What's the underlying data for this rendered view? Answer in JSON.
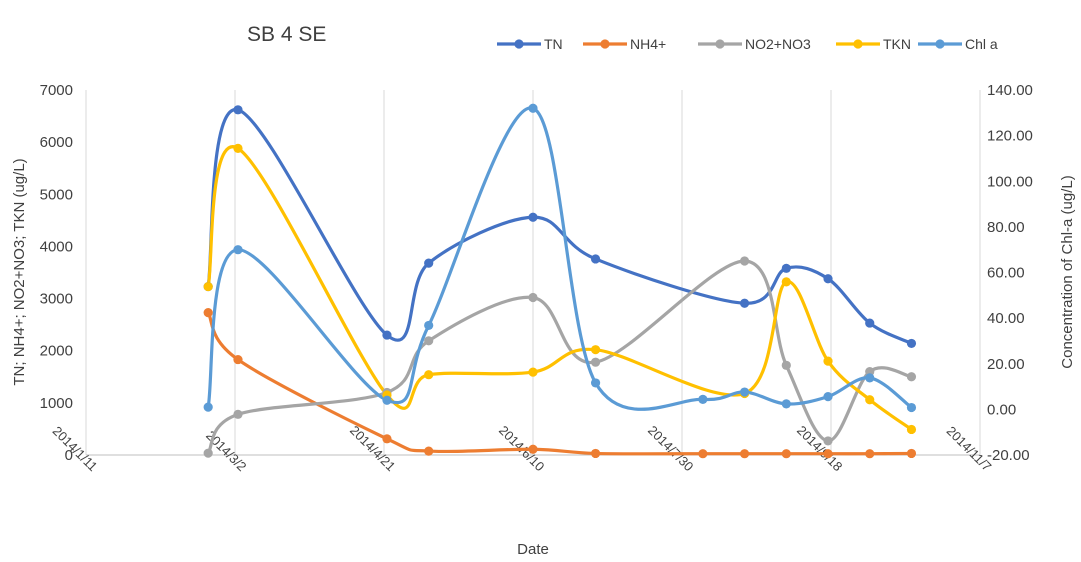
{
  "chart_data": {
    "type": "line",
    "title": "SB 4 SE",
    "xlabel": "Date",
    "ylabel": "TN; NH4+; NO2+NO3; TKN (ug/L)",
    "y2label": "Concentration of Chl-a (ug/L)",
    "xlim": [
      "2014/1/11",
      "2014/11/7"
    ],
    "x_ticks": [
      "2014/1/11",
      "2014/3/2",
      "2014/4/21",
      "2014/6/10",
      "2014/7/30",
      "2014/9/18",
      "2014/11/7"
    ],
    "ylim": [
      0,
      7000
    ],
    "y_ticks": [
      "0",
      "1000",
      "2000",
      "3000",
      "4000",
      "5000",
      "6000",
      "7000"
    ],
    "y2lim": [
      -20,
      140
    ],
    "y2_ticks": [
      "-20.00",
      "0.00",
      "20.00",
      "40.00",
      "60.00",
      "80.00",
      "100.00",
      "120.00",
      "140.00"
    ],
    "grid": "vertical",
    "legend": "top",
    "smooth": true,
    "series": [
      {
        "name": "TN",
        "axis": "left",
        "color": "#4472C4",
        "points": [
          [
            "2014/2/21",
            3230
          ],
          [
            "2014/3/3",
            6620
          ],
          [
            "2014/4/22",
            2300
          ],
          [
            "2014/5/6",
            3680
          ],
          [
            "2014/6/10",
            4560
          ],
          [
            "2014/7/1",
            3760
          ],
          [
            "2014/8/20",
            2910
          ],
          [
            "2014/9/3",
            3580
          ],
          [
            "2014/9/17",
            3380
          ],
          [
            "2014/10/1",
            2530
          ],
          [
            "2014/10/15",
            2140
          ]
        ]
      },
      {
        "name": "NH4+",
        "axis": "left",
        "color": "#ED7D31",
        "points": [
          [
            "2014/2/21",
            2730
          ],
          [
            "2014/3/3",
            1830
          ],
          [
            "2014/4/22",
            310
          ],
          [
            "2014/5/6",
            75
          ],
          [
            "2014/6/10",
            110
          ],
          [
            "2014/7/1",
            30
          ],
          [
            "2014/8/6",
            25
          ],
          [
            "2014/8/20",
            25
          ],
          [
            "2014/9/3",
            25
          ],
          [
            "2014/9/17",
            25
          ],
          [
            "2014/10/1",
            25
          ],
          [
            "2014/10/15",
            30
          ]
        ]
      },
      {
        "name": "NO2+NO3",
        "axis": "left",
        "color": "#A5A5A5",
        "points": [
          [
            "2014/2/21",
            35
          ],
          [
            "2014/3/3",
            780
          ],
          [
            "2014/4/22",
            1200
          ],
          [
            "2014/5/6",
            2190
          ],
          [
            "2014/6/10",
            3020
          ],
          [
            "2014/7/1",
            1780
          ],
          [
            "2014/8/20",
            3720
          ],
          [
            "2014/9/3",
            1720
          ],
          [
            "2014/9/17",
            270
          ],
          [
            "2014/10/1",
            1600
          ],
          [
            "2014/10/15",
            1500
          ]
        ]
      },
      {
        "name": "TKN",
        "axis": "left",
        "color": "#FFC000",
        "points": [
          [
            "2014/2/21",
            3230
          ],
          [
            "2014/3/3",
            5880
          ],
          [
            "2014/4/22",
            1150
          ],
          [
            "2014/5/6",
            1540
          ],
          [
            "2014/6/10",
            1590
          ],
          [
            "2014/7/1",
            2020
          ],
          [
            "2014/8/20",
            1180
          ],
          [
            "2014/9/3",
            3320
          ],
          [
            "2014/9/17",
            1800
          ],
          [
            "2014/10/1",
            1060
          ],
          [
            "2014/10/15",
            490
          ]
        ]
      },
      {
        "name": "Chl a",
        "axis": "right",
        "color": "#5B9BD5",
        "points": [
          [
            "2014/2/21",
            1.0
          ],
          [
            "2014/3/3",
            70.0
          ],
          [
            "2014/4/22",
            4.0
          ],
          [
            "2014/5/6",
            36.8
          ],
          [
            "2014/6/10",
            132.0
          ],
          [
            "2014/7/1",
            11.6
          ],
          [
            "2014/8/6",
            4.4
          ],
          [
            "2014/8/20",
            7.6
          ],
          [
            "2014/9/3",
            2.4
          ],
          [
            "2014/9/17",
            5.6
          ],
          [
            "2014/10/1",
            13.8
          ],
          [
            "2014/10/15",
            0.8
          ]
        ]
      }
    ]
  }
}
